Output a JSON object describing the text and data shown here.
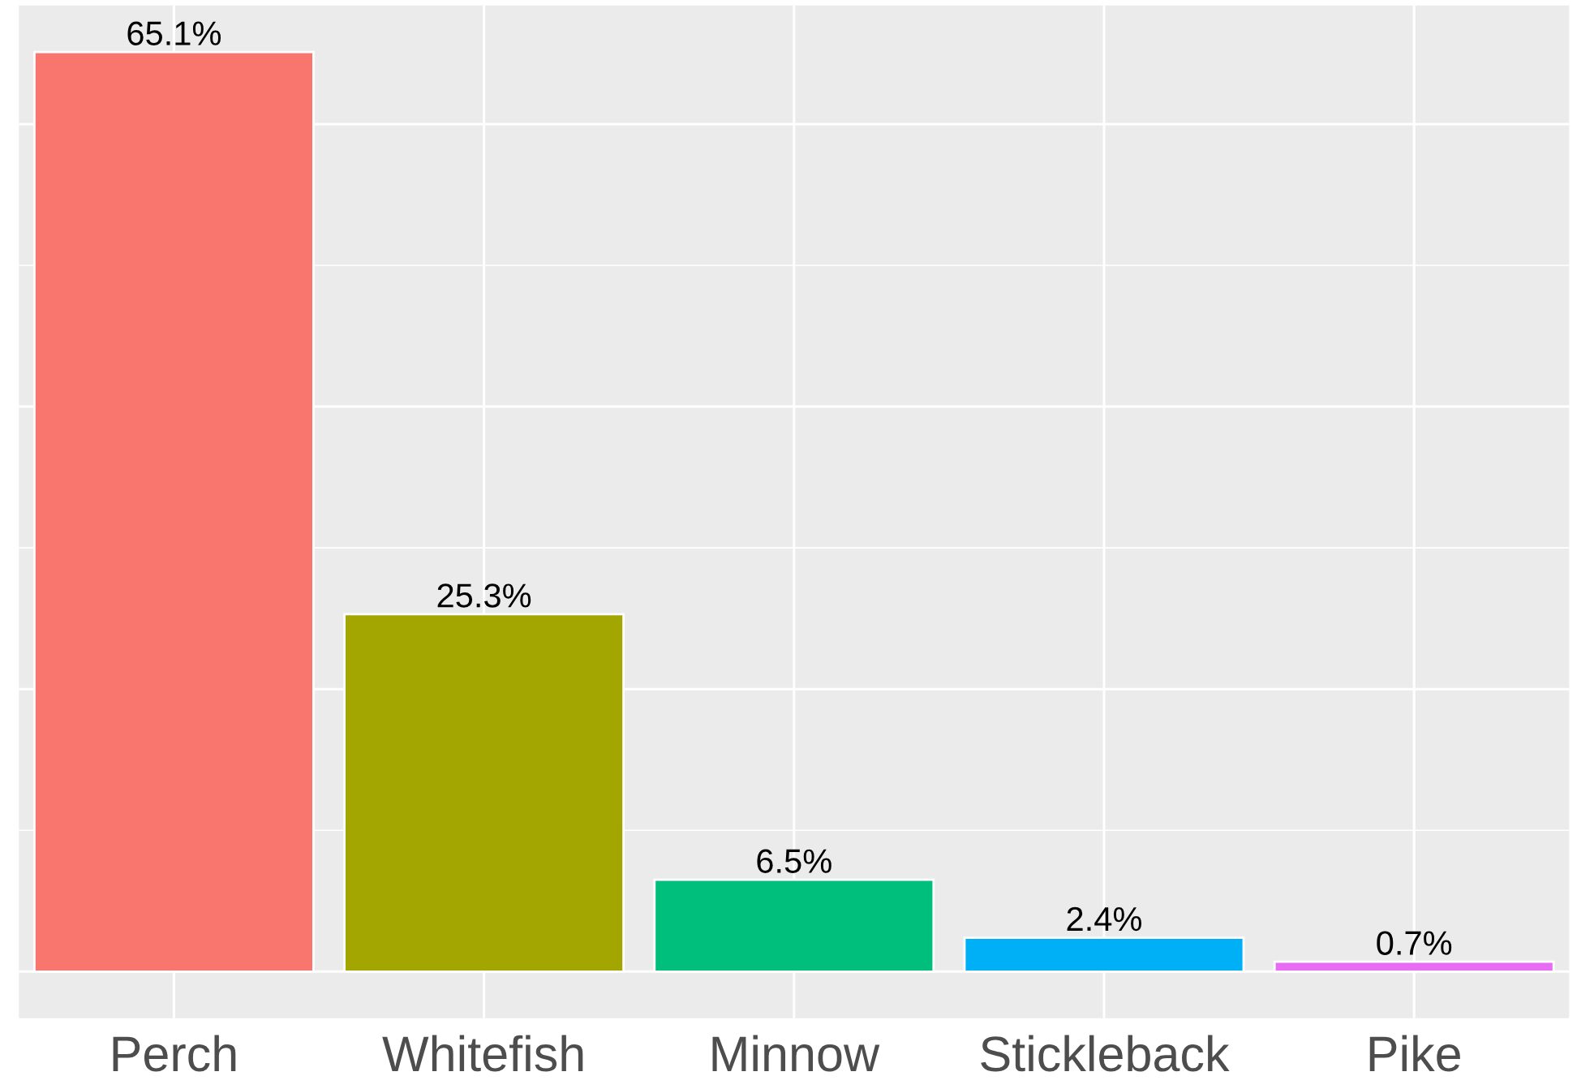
{
  "chart_data": {
    "type": "bar",
    "categories": [
      "Perch",
      "Whitefish",
      "Minnow",
      "Stickleback",
      "Pike"
    ],
    "values": [
      65.1,
      25.3,
      6.5,
      2.4,
      0.7
    ],
    "colors": [
      "#f8766d",
      "#a3a500",
      "#00bf7d",
      "#00b0f6",
      "#e76bf3"
    ],
    "value_labels": [
      "65.1%",
      "25.3%",
      "6.5%",
      "2.4%",
      "0.7%"
    ],
    "ylim": [
      -3.3,
      68.4
    ],
    "yticks": [
      {
        "value": 0,
        "label": null
      },
      {
        "value": 20,
        "label": null
      },
      {
        "value": 40,
        "label": null
      },
      {
        "value": 60,
        "label": null
      }
    ],
    "grid": true,
    "tick_labels": "x"
  }
}
